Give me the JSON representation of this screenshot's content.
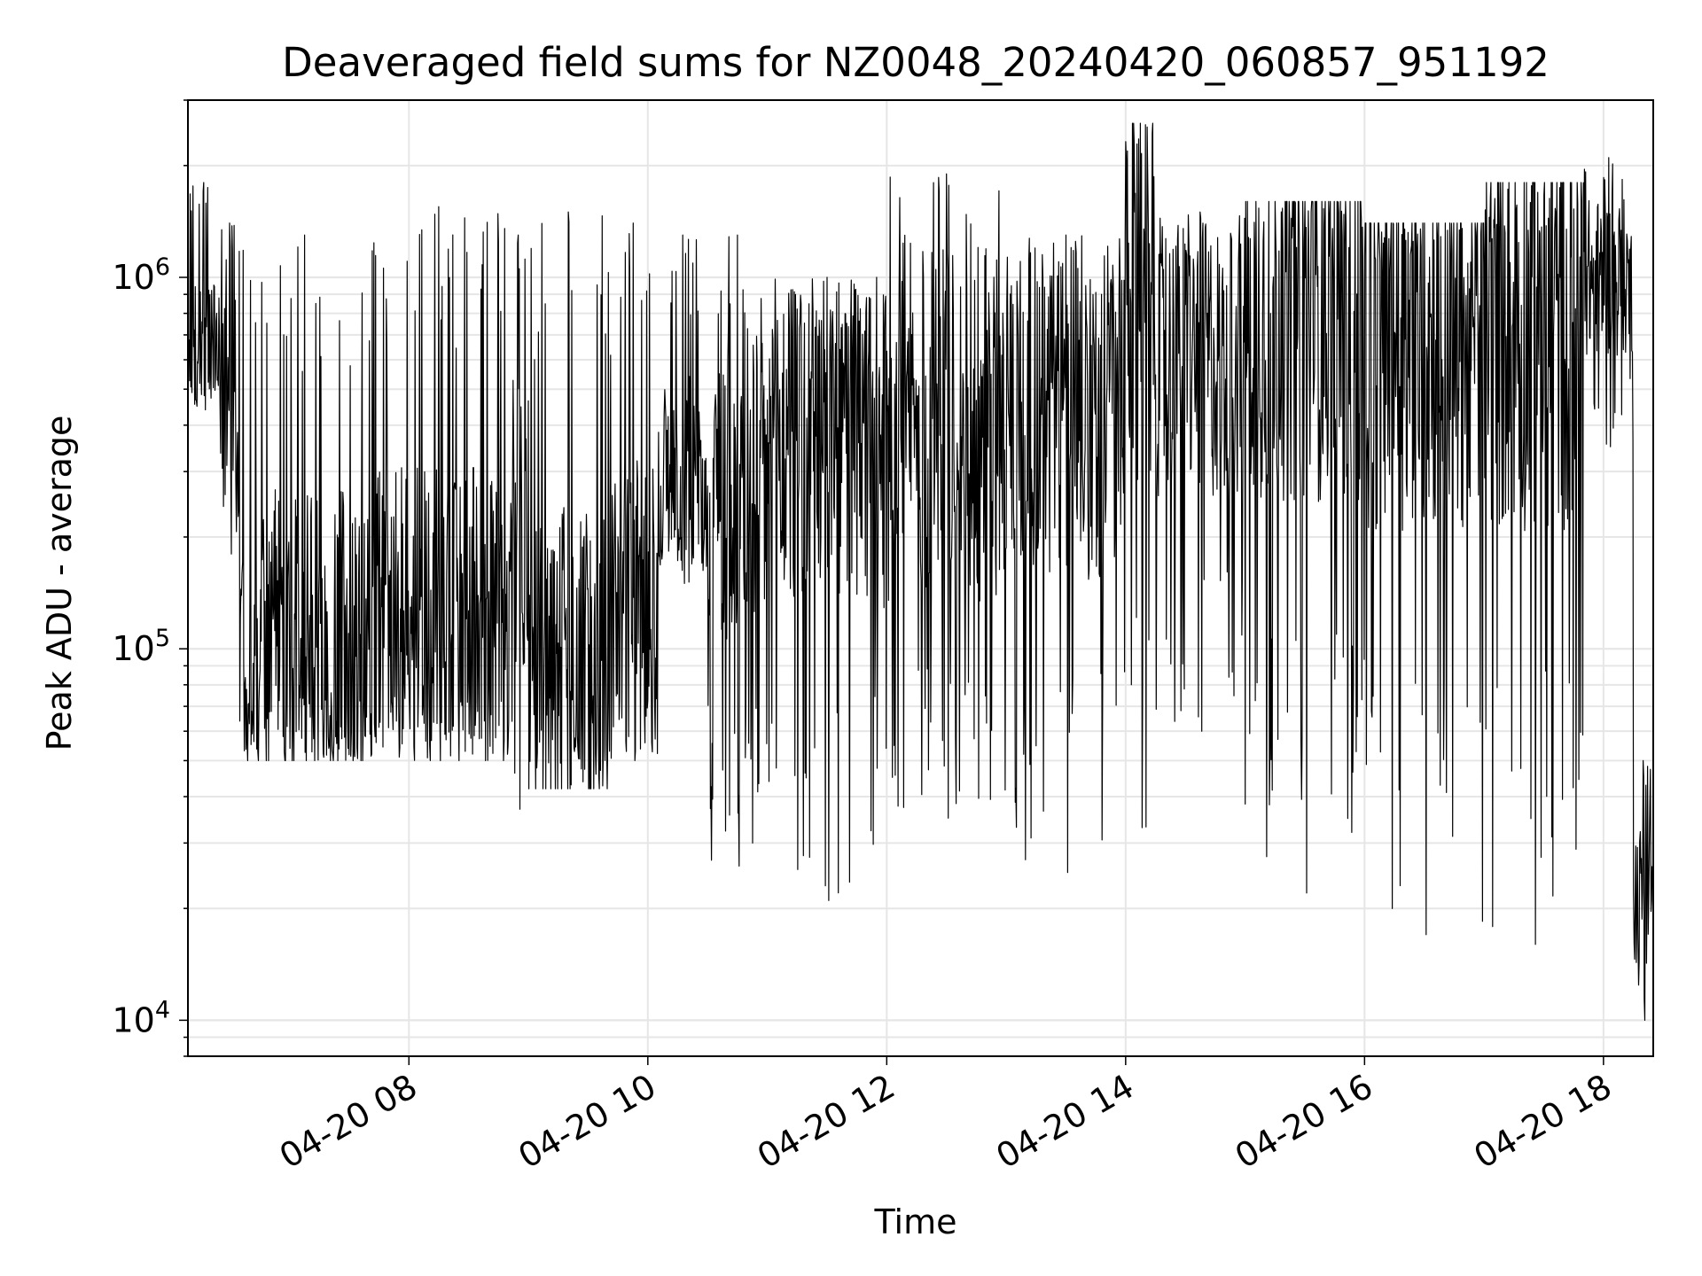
{
  "chart_data": {
    "type": "line",
    "title": "Deaveraged field sums for NZ0048_20240420_060857_951192",
    "xlabel": "Time",
    "ylabel": "Peak ADU - average",
    "yscale": "log",
    "ylim": [
      8000,
      3000000
    ],
    "xlim": [
      "2024-04-20 06:09",
      "2024-04-20 18:25"
    ],
    "grid": true,
    "colors": {
      "line": "#000000",
      "grid": "#e6e6e6",
      "axes": "#000000"
    },
    "x_ticks": [
      {
        "label": "04-20 08",
        "value": "2024-04-20 08:00"
      },
      {
        "label": "04-20 10",
        "value": "2024-04-20 10:00"
      },
      {
        "label": "04-20 12",
        "value": "2024-04-20 12:00"
      },
      {
        "label": "04-20 14",
        "value": "2024-04-20 14:00"
      },
      {
        "label": "04-20 16",
        "value": "2024-04-20 16:00"
      },
      {
        "label": "04-20 18",
        "value": "2024-04-20 18:00"
      }
    ],
    "y_ticks": [
      {
        "base": "10",
        "exp": "4",
        "value": 10000
      },
      {
        "base": "10",
        "exp": "5",
        "value": 100000
      },
      {
        "base": "10",
        "exp": "6",
        "value": 1000000
      }
    ],
    "series": [
      {
        "segments": [
          {
            "start": "2024-04-20 06:09",
            "end": "2024-04-20 06:25",
            "high": 1800000,
            "typical": 650000,
            "low": 440000
          },
          {
            "start": "2024-04-20 06:25",
            "end": "2024-04-20 06:35",
            "high": 1400000,
            "typical": 500000,
            "low": 180000
          },
          {
            "start": "2024-04-20 06:35",
            "end": "2024-04-20 07:40",
            "high": 1300000,
            "typical": 110000,
            "low": 50000
          },
          {
            "start": "2024-04-20 07:40",
            "end": "2024-04-20 08:50",
            "high": 1550000,
            "typical": 120000,
            "low": 50000
          },
          {
            "start": "2024-04-20 08:50",
            "end": "2024-04-20 09:00",
            "high": 1300000,
            "typical": 200000,
            "low": 37000
          },
          {
            "start": "2024-04-20 09:00",
            "end": "2024-04-20 09:40",
            "high": 1500000,
            "typical": 90000,
            "low": 42000
          },
          {
            "start": "2024-04-20 09:40",
            "end": "2024-04-20 10:05",
            "high": 1400000,
            "typical": 130000,
            "low": 50000
          },
          {
            "start": "2024-04-20 10:05",
            "end": "2024-04-20 10:30",
            "high": 1300000,
            "typical": 300000,
            "low": 150000
          },
          {
            "start": "2024-04-20 10:30",
            "end": "2024-04-20 11:00",
            "high": 1300000,
            "typical": 300000,
            "low": 26000
          },
          {
            "start": "2024-04-20 11:00",
            "end": "2024-04-20 12:00",
            "high": 1000000,
            "typical": 350000,
            "low": 21000
          },
          {
            "start": "2024-04-20 12:00",
            "end": "2024-04-20 13:00",
            "high": 1900000,
            "typical": 400000,
            "low": 35000
          },
          {
            "start": "2024-04-20 13:00",
            "end": "2024-04-20 14:00",
            "high": 1300000,
            "typical": 450000,
            "low": 25000
          },
          {
            "start": "2024-04-20 14:00",
            "end": "2024-04-20 14:15",
            "high": 2600000,
            "typical": 800000,
            "low": 33000
          },
          {
            "start": "2024-04-20 14:15",
            "end": "2024-04-20 15:00",
            "high": 1500000,
            "typical": 600000,
            "low": 60000
          },
          {
            "start": "2024-04-20 15:00",
            "end": "2024-04-20 16:00",
            "high": 1600000,
            "typical": 800000,
            "low": 22000
          },
          {
            "start": "2024-04-20 16:00",
            "end": "2024-04-20 17:00",
            "high": 1400000,
            "typical": 700000,
            "low": 17000
          },
          {
            "start": "2024-04-20 17:00",
            "end": "2024-04-20 17:50",
            "high": 1800000,
            "typical": 750000,
            "low": 16000
          },
          {
            "start": "2024-04-20 17:50",
            "end": "2024-04-20 18:15",
            "high": 2100000,
            "typical": 1000000,
            "low": 350000
          },
          {
            "start": "2024-04-20 18:15",
            "end": "2024-04-20 18:25",
            "high": 50000,
            "typical": 22000,
            "low": 10000
          }
        ]
      }
    ]
  }
}
